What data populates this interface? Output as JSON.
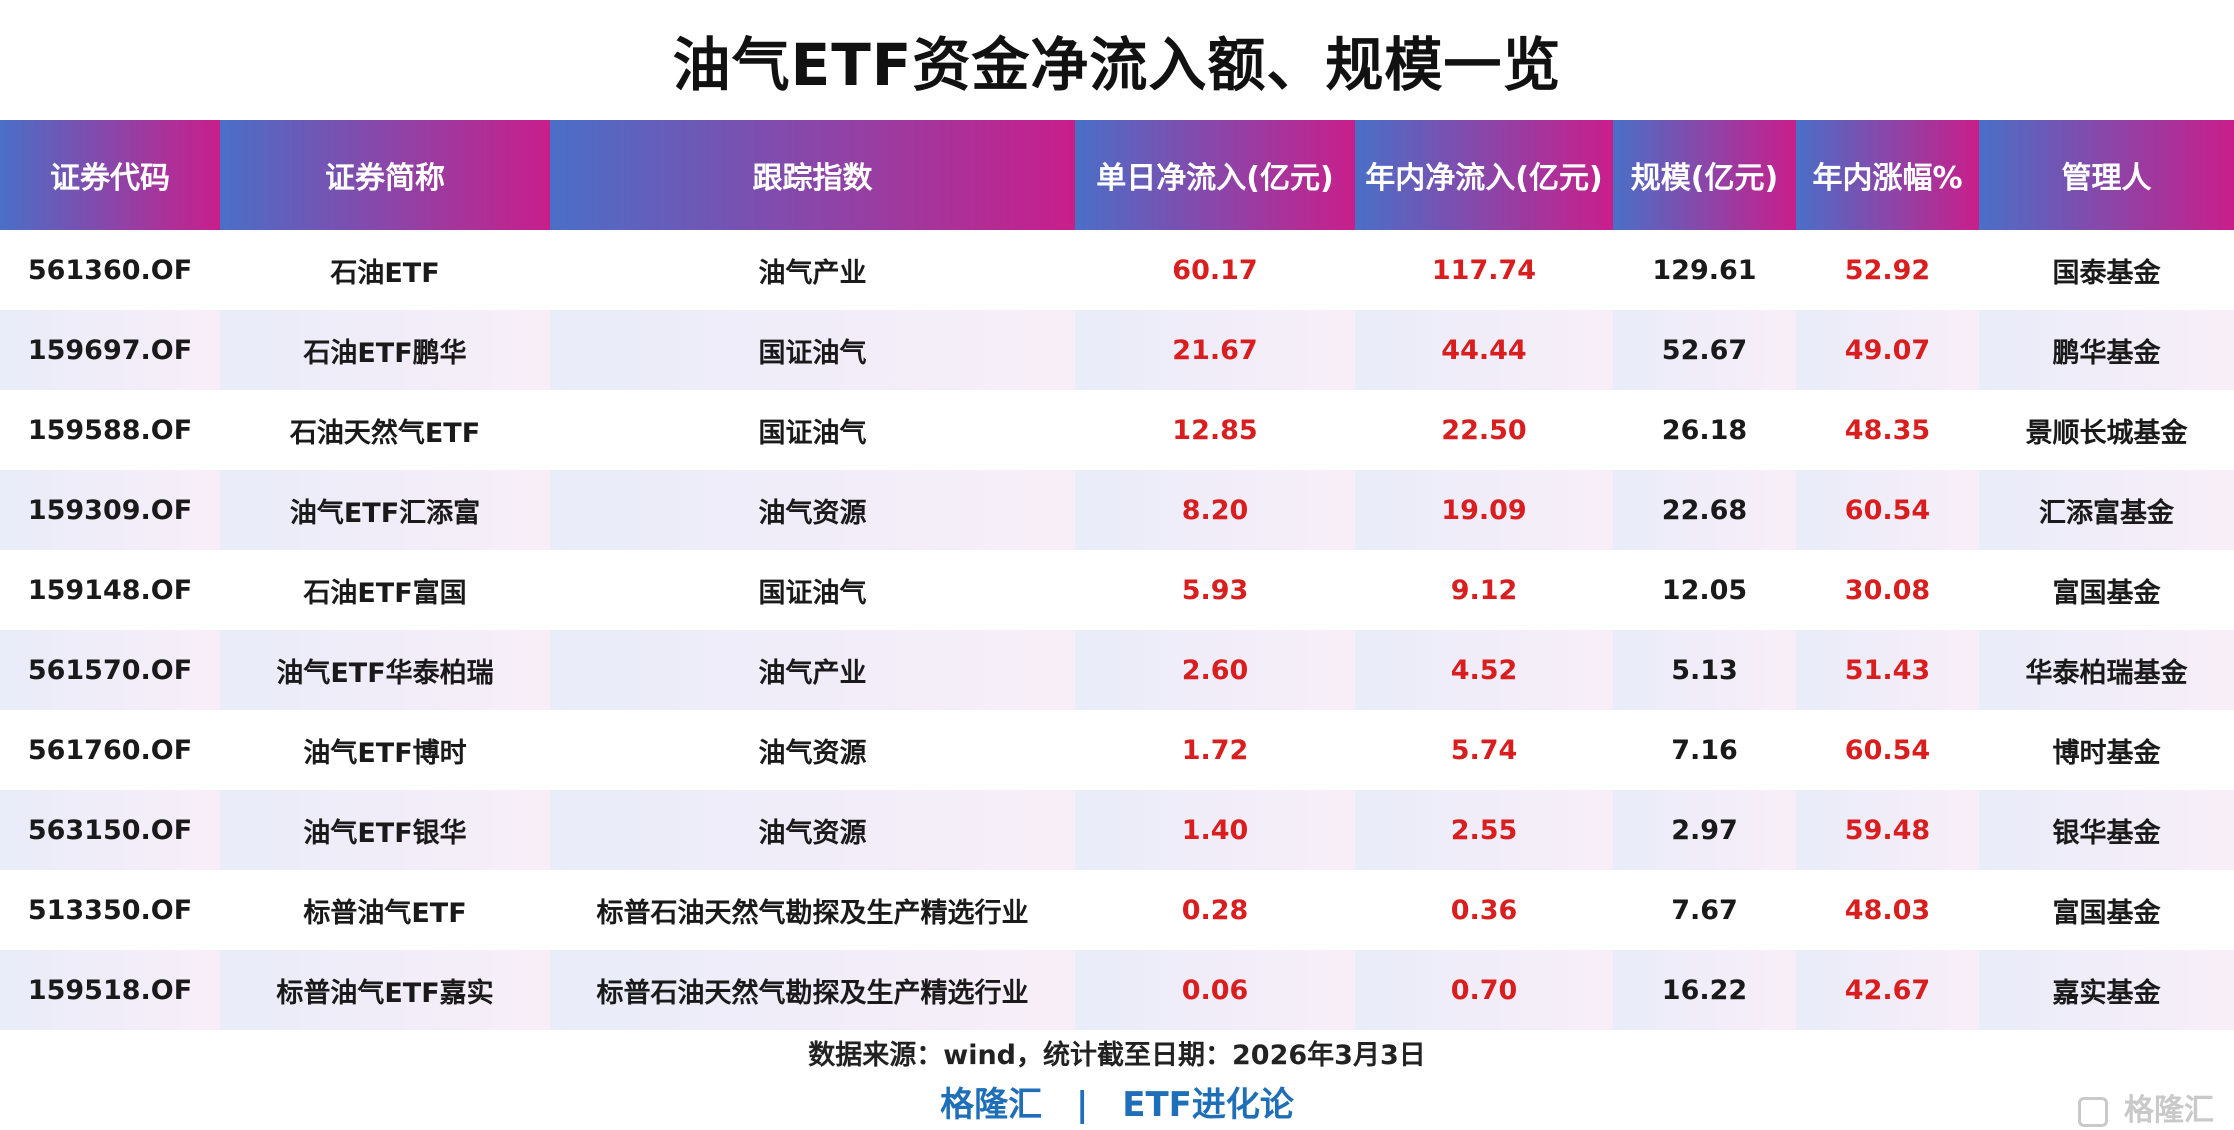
{
  "title": "油气ETF资金净流入额、规模一览",
  "headers": [
    "证券代码",
    "证券简称",
    "跟踪指数",
    "单日净流入(亿元)",
    "年内净流入(亿元)",
    "规模(亿元)",
    "年内涨幅%",
    "管理人"
  ],
  "rows": [
    {
      "code": "561360.OF",
      "name": "石油ETF",
      "index": "油气产业",
      "daily": "60.17",
      "ytd_flow": "117.74",
      "scale": "129.61",
      "ytd_gain": "52.92",
      "manager": "国泰基金"
    },
    {
      "code": "159697.OF",
      "name": "石油ETF鹏华",
      "index": "国证油气",
      "daily": "21.67",
      "ytd_flow": "44.44",
      "scale": "52.67",
      "ytd_gain": "49.07",
      "manager": "鹏华基金"
    },
    {
      "code": "159588.OF",
      "name": "石油天然气ETF",
      "index": "国证油气",
      "daily": "12.85",
      "ytd_flow": "22.50",
      "scale": "26.18",
      "ytd_gain": "48.35",
      "manager": "景顺长城基金"
    },
    {
      "code": "159309.OF",
      "name": "油气ETF汇添富",
      "index": "油气资源",
      "daily": "8.20",
      "ytd_flow": "19.09",
      "scale": "22.68",
      "ytd_gain": "60.54",
      "manager": "汇添富基金"
    },
    {
      "code": "159148.OF",
      "name": "石油ETF富国",
      "index": "国证油气",
      "daily": "5.93",
      "ytd_flow": "9.12",
      "scale": "12.05",
      "ytd_gain": "30.08",
      "manager": "富国基金"
    },
    {
      "code": "561570.OF",
      "name": "油气ETF华泰柏瑞",
      "index": "油气产业",
      "daily": "2.60",
      "ytd_flow": "4.52",
      "scale": "5.13",
      "ytd_gain": "51.43",
      "manager": "华泰柏瑞基金"
    },
    {
      "code": "561760.OF",
      "name": "油气ETF博时",
      "index": "油气资源",
      "daily": "1.72",
      "ytd_flow": "5.74",
      "scale": "7.16",
      "ytd_gain": "60.54",
      "manager": "博时基金"
    },
    {
      "code": "563150.OF",
      "name": "油气ETF银华",
      "index": "油气资源",
      "daily": "1.40",
      "ytd_flow": "2.55",
      "scale": "2.97",
      "ytd_gain": "59.48",
      "manager": "银华基金"
    },
    {
      "code": "513350.OF",
      "name": "标普油气ETF",
      "index": "标普石油天然气勘探及生产精选行业",
      "daily": "0.28",
      "ytd_flow": "0.36",
      "scale": "7.67",
      "ytd_gain": "48.03",
      "manager": "富国基金"
    },
    {
      "code": "159518.OF",
      "name": "标普油气ETF嘉实",
      "index": "标普石油天然气勘探及生产精选行业",
      "daily": "0.06",
      "ytd_flow": "0.70",
      "scale": "16.22",
      "ytd_gain": "42.67",
      "manager": "嘉实基金"
    }
  ],
  "source": "数据来源：wind，统计截至日期：2026年3月3日",
  "brand": {
    "left": "格隆汇",
    "separator": "|",
    "right": "ETF进化论"
  },
  "watermark": "格隆汇",
  "colors": {
    "header_from": "#4a6fc7",
    "header_to": "#c91e8a",
    "highlight": "#d81e1e",
    "brand": "#1f6fb8"
  }
}
